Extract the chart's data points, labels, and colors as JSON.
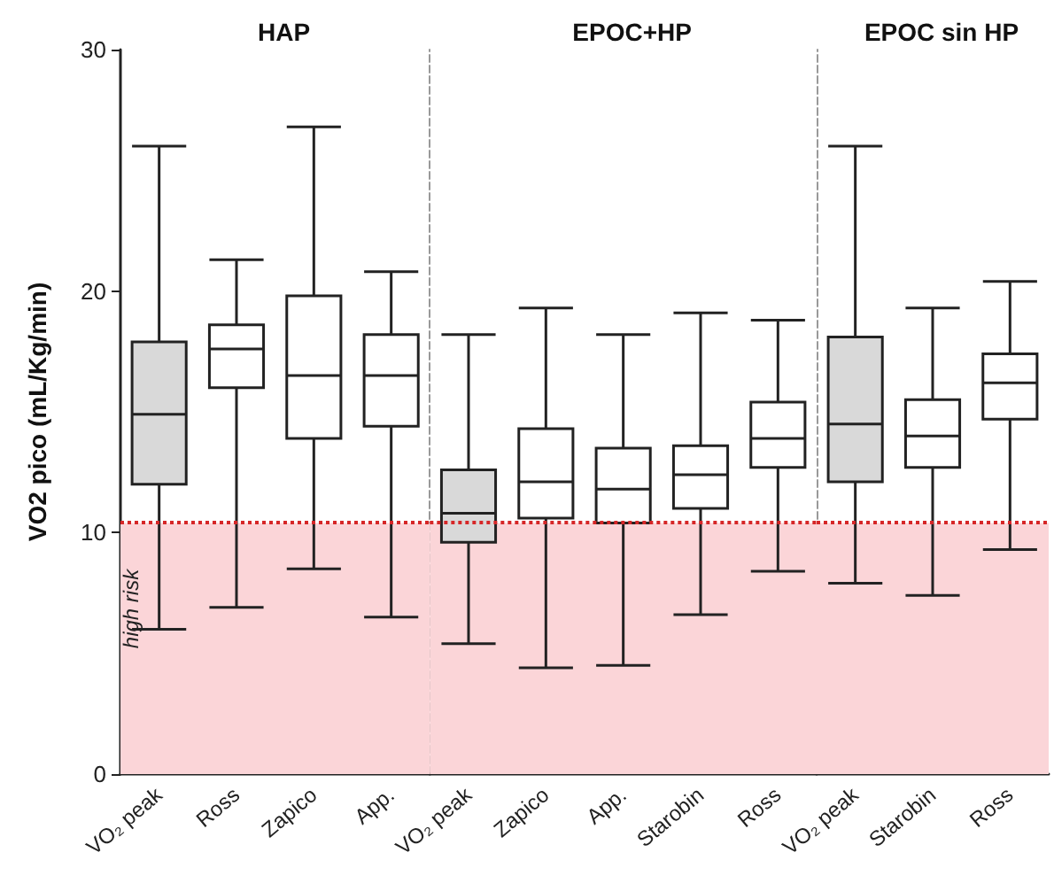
{
  "chart_data": [
    {
      "type": "box",
      "title": "HAP",
      "ylabel": "VO2 pico (mL/Kg/min)",
      "categories": [
        "VO₂ peak",
        "Ross",
        "Zapico",
        "App."
      ],
      "boxes": [
        {
          "low": 6.0,
          "q1": 12.0,
          "median": 14.9,
          "q3": 17.9,
          "high": 26.0
        },
        {
          "low": 6.9,
          "q1": 16.0,
          "median": 17.6,
          "q3": 18.6,
          "high": 21.3
        },
        {
          "low": 8.5,
          "q1": 13.9,
          "median": 16.5,
          "q3": 19.8,
          "high": 26.8
        },
        {
          "low": 6.5,
          "q1": 14.4,
          "median": 16.5,
          "q3": 18.2,
          "high": 20.8
        }
      ],
      "colors": [
        "#d9d9d9",
        "#ffffff",
        "#ffffff",
        "#ffffff"
      ],
      "ylim": [
        0,
        30
      ],
      "yticks": [
        0,
        10,
        20,
        30
      ],
      "grid": false,
      "ref_lines": [
        {
          "axis": "y",
          "value": 10.4,
          "color": "#d62728",
          "line_style": "dotted"
        }
      ],
      "bands": [
        {
          "axis": "y",
          "from": 0,
          "to": 10.4,
          "label": "high risk",
          "color": "#fbd5d8"
        }
      ]
    },
    {
      "type": "box",
      "title": "EPOC+HP",
      "categories": [
        "VO₂ peak",
        "Zapico",
        "App.",
        "Starobin",
        "Ross"
      ],
      "boxes": [
        {
          "low": 5.4,
          "q1": 9.6,
          "median": 10.8,
          "q3": 12.6,
          "high": 18.2
        },
        {
          "low": 4.4,
          "q1": 10.6,
          "median": 12.1,
          "q3": 14.3,
          "high": 19.3
        },
        {
          "low": 4.5,
          "q1": 10.4,
          "median": 11.8,
          "q3": 13.5,
          "high": 18.2
        },
        {
          "low": 6.6,
          "q1": 11.0,
          "median": 12.4,
          "q3": 13.6,
          "high": 19.1
        },
        {
          "low": 8.4,
          "q1": 12.7,
          "median": 13.9,
          "q3": 15.4,
          "high": 18.8
        }
      ],
      "colors": [
        "#d9d9d9",
        "#ffffff",
        "#ffffff",
        "#ffffff",
        "#ffffff"
      ],
      "ylim": [
        0,
        30
      ],
      "yticks": [
        0,
        10,
        20,
        30
      ],
      "grid": false,
      "tick_labels": "x",
      "ref_lines": [
        {
          "axis": "y",
          "value": 10.4,
          "color": "#d62728",
          "line_style": "dotted"
        }
      ],
      "bands": [
        {
          "axis": "y",
          "from": 0,
          "to": 10.4,
          "color": "#fbd5d8"
        }
      ]
    },
    {
      "type": "box",
      "title": "EPOC sin HP",
      "categories": [
        "VO₂ peak",
        "Starobin",
        "Ross"
      ],
      "boxes": [
        {
          "low": 7.9,
          "q1": 12.1,
          "median": 14.5,
          "q3": 18.1,
          "high": 26.0
        },
        {
          "low": 7.4,
          "q1": 12.7,
          "median": 14.0,
          "q3": 15.5,
          "high": 19.3
        },
        {
          "low": 9.3,
          "q1": 14.7,
          "median": 16.2,
          "q3": 17.4,
          "high": 20.4
        }
      ],
      "colors": [
        "#d9d9d9",
        "#ffffff",
        "#ffffff"
      ],
      "ylim": [
        0,
        30
      ],
      "yticks": [
        0,
        10,
        20,
        30
      ],
      "grid": false,
      "tick_labels": "x",
      "ref_lines": [
        {
          "axis": "y",
          "value": 10.4,
          "color": "#d62728",
          "line_style": "dotted"
        }
      ],
      "bands": [
        {
          "axis": "y",
          "from": 0,
          "to": 10.4,
          "color": "#fbd5d8"
        }
      ]
    }
  ]
}
